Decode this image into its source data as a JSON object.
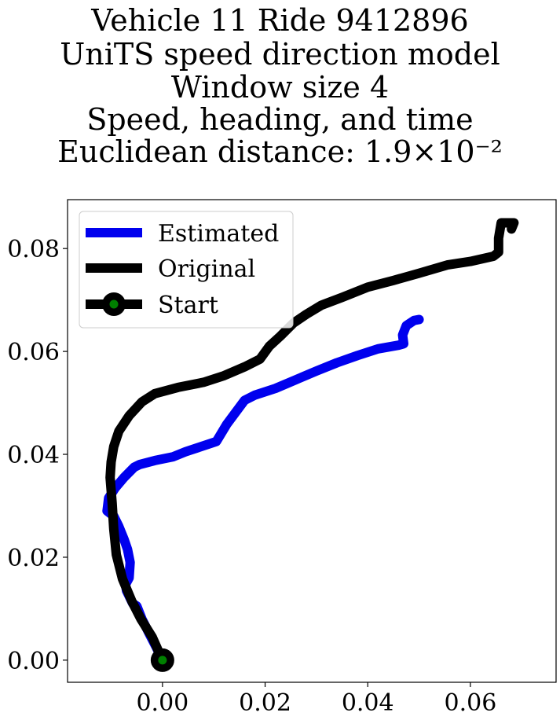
{
  "chart_data": {
    "type": "line",
    "title_lines": [
      "Vehicle 11 Ride 9412896",
      "UniTS speed direction model",
      "Window size 4",
      "Speed, heading, and time",
      "Euclidean distance: 1.9×10⁻²"
    ],
    "xlabel": "",
    "ylabel": "",
    "xlim": [
      -0.0185,
      0.0767
    ],
    "ylim": [
      -0.0043,
      0.0895
    ],
    "x_ticks": [
      "0.00",
      "0.02",
      "0.04",
      "0.06"
    ],
    "x_tick_values": [
      0.0,
      0.02,
      0.04,
      0.06
    ],
    "y_ticks": [
      "0.00",
      "0.02",
      "0.04",
      "0.06",
      "0.08"
    ],
    "y_tick_values": [
      0.0,
      0.02,
      0.04,
      0.06,
      0.08
    ],
    "grid": false,
    "legend_position": "top-left",
    "legend": [
      "Estimated",
      "Original",
      "Start"
    ],
    "series": [
      {
        "name": "Estimated",
        "color": "#0000ee",
        "points": [
          [
            0.0,
            0.0
          ],
          [
            -0.0012,
            0.0025
          ],
          [
            -0.0025,
            0.005
          ],
          [
            -0.004,
            0.008
          ],
          [
            -0.005,
            0.0105
          ],
          [
            -0.0058,
            0.011
          ],
          [
            -0.007,
            0.0135
          ],
          [
            -0.0072,
            0.0147
          ],
          [
            -0.0065,
            0.016
          ],
          [
            -0.0063,
            0.019
          ],
          [
            -0.0068,
            0.0215
          ],
          [
            -0.0075,
            0.0235
          ],
          [
            -0.0085,
            0.026
          ],
          [
            -0.0095,
            0.028
          ],
          [
            -0.0108,
            0.029
          ],
          [
            -0.0105,
            0.0315
          ],
          [
            -0.0092,
            0.0335
          ],
          [
            -0.0075,
            0.0355
          ],
          [
            -0.0055,
            0.0375
          ],
          [
            -0.0045,
            0.038
          ],
          [
            -0.0015,
            0.0388
          ],
          [
            0.002,
            0.0395
          ],
          [
            0.0045,
            0.0405
          ],
          [
            0.0075,
            0.0415
          ],
          [
            0.0105,
            0.0425
          ],
          [
            0.0125,
            0.0458
          ],
          [
            0.016,
            0.0505
          ],
          [
            0.018,
            0.0515
          ],
          [
            0.022,
            0.0528
          ],
          [
            0.026,
            0.0545
          ],
          [
            0.03,
            0.0562
          ],
          [
            0.034,
            0.0578
          ],
          [
            0.038,
            0.0592
          ],
          [
            0.042,
            0.0605
          ],
          [
            0.046,
            0.0612
          ],
          [
            0.047,
            0.0615
          ],
          [
            0.0468,
            0.0632
          ],
          [
            0.0475,
            0.065
          ],
          [
            0.049,
            0.066
          ],
          [
            0.05,
            0.0662
          ]
        ]
      },
      {
        "name": "Original",
        "color": "#000000",
        "points": [
          [
            0.0,
            0.0
          ],
          [
            -0.002,
            0.0045
          ],
          [
            -0.0042,
            0.008
          ],
          [
            -0.006,
            0.0115
          ],
          [
            -0.0078,
            0.0158
          ],
          [
            -0.009,
            0.0205
          ],
          [
            -0.0095,
            0.0255
          ],
          [
            -0.0098,
            0.0305
          ],
          [
            -0.0102,
            0.0355
          ],
          [
            -0.01,
            0.0385
          ],
          [
            -0.0095,
            0.0415
          ],
          [
            -0.0085,
            0.0445
          ],
          [
            -0.0065,
            0.0475
          ],
          [
            -0.004,
            0.0502
          ],
          [
            -0.0015,
            0.0518
          ],
          [
            0.003,
            0.053
          ],
          [
            0.008,
            0.054
          ],
          [
            0.012,
            0.0553
          ],
          [
            0.016,
            0.057
          ],
          [
            0.019,
            0.0585
          ],
          [
            0.0208,
            0.061
          ],
          [
            0.023,
            0.063
          ],
          [
            0.0255,
            0.0655
          ],
          [
            0.028,
            0.0672
          ],
          [
            0.031,
            0.069
          ],
          [
            0.035,
            0.0705
          ],
          [
            0.04,
            0.0725
          ],
          [
            0.045,
            0.0738
          ],
          [
            0.05,
            0.0752
          ],
          [
            0.0555,
            0.0768
          ],
          [
            0.06,
            0.0775
          ],
          [
            0.0645,
            0.0785
          ],
          [
            0.0655,
            0.0793
          ],
          [
            0.0655,
            0.082
          ],
          [
            0.066,
            0.085
          ],
          [
            0.0685,
            0.085
          ],
          [
            0.068,
            0.0838
          ]
        ]
      }
    ],
    "start_point": [
      0.0,
      0.0
    ],
    "start_marker_color": "#008000"
  }
}
